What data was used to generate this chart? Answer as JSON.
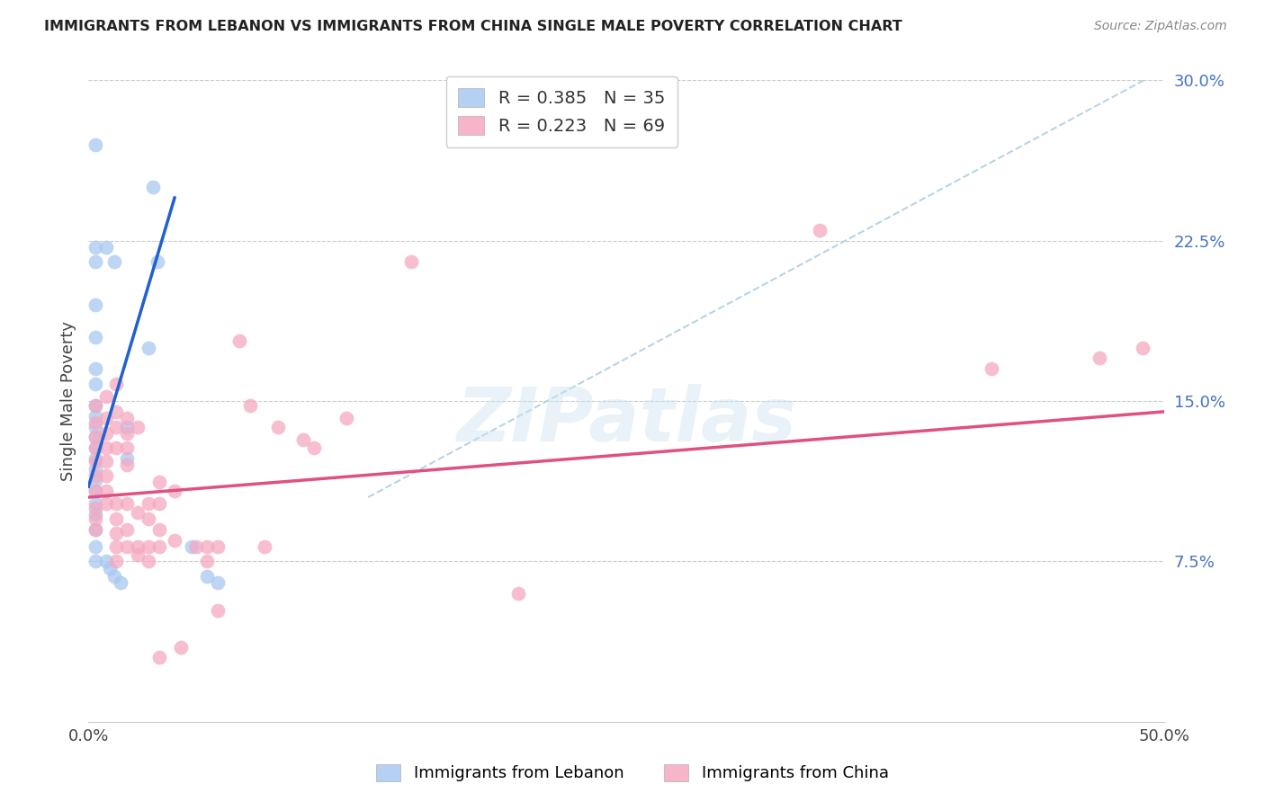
{
  "title": "IMMIGRANTS FROM LEBANON VS IMMIGRANTS FROM CHINA SINGLE MALE POVERTY CORRELATION CHART",
  "source": "Source: ZipAtlas.com",
  "ylabel": "Single Male Poverty",
  "lebanon_color": "#a8c8f0",
  "china_color": "#f5a8c0",
  "lebanon_line_color": "#2060d0",
  "china_line_color": "#e05080",
  "diagonal_color": "#b0d0e0",
  "background_color": "#ffffff",
  "xlim": [
    0.0,
    0.5
  ],
  "ylim": [
    0.0,
    0.3
  ],
  "lebanon_line": [
    0.0,
    0.11,
    0.04,
    0.245
  ],
  "china_line": [
    0.0,
    0.105,
    0.5,
    0.145
  ],
  "diagonal_line": [
    0.13,
    0.105,
    0.5,
    0.305
  ],
  "lebanon_points": [
    [
      0.003,
      0.27
    ],
    [
      0.003,
      0.222
    ],
    [
      0.003,
      0.215
    ],
    [
      0.003,
      0.195
    ],
    [
      0.003,
      0.18
    ],
    [
      0.003,
      0.165
    ],
    [
      0.003,
      0.158
    ],
    [
      0.003,
      0.148
    ],
    [
      0.003,
      0.143
    ],
    [
      0.003,
      0.138
    ],
    [
      0.003,
      0.133
    ],
    [
      0.003,
      0.128
    ],
    [
      0.003,
      0.123
    ],
    [
      0.003,
      0.118
    ],
    [
      0.003,
      0.113
    ],
    [
      0.003,
      0.108
    ],
    [
      0.003,
      0.102
    ],
    [
      0.003,
      0.097
    ],
    [
      0.003,
      0.09
    ],
    [
      0.003,
      0.082
    ],
    [
      0.003,
      0.075
    ],
    [
      0.008,
      0.222
    ],
    [
      0.012,
      0.215
    ],
    [
      0.018,
      0.138
    ],
    [
      0.018,
      0.123
    ],
    [
      0.028,
      0.175
    ],
    [
      0.03,
      0.25
    ],
    [
      0.032,
      0.215
    ],
    [
      0.048,
      0.082
    ],
    [
      0.055,
      0.068
    ],
    [
      0.06,
      0.065
    ],
    [
      0.008,
      0.075
    ],
    [
      0.01,
      0.072
    ],
    [
      0.012,
      0.068
    ],
    [
      0.015,
      0.065
    ]
  ],
  "china_points": [
    [
      0.003,
      0.148
    ],
    [
      0.003,
      0.14
    ],
    [
      0.003,
      0.133
    ],
    [
      0.003,
      0.128
    ],
    [
      0.003,
      0.122
    ],
    [
      0.003,
      0.115
    ],
    [
      0.003,
      0.108
    ],
    [
      0.003,
      0.1
    ],
    [
      0.003,
      0.095
    ],
    [
      0.003,
      0.09
    ],
    [
      0.008,
      0.152
    ],
    [
      0.008,
      0.142
    ],
    [
      0.008,
      0.135
    ],
    [
      0.008,
      0.128
    ],
    [
      0.008,
      0.122
    ],
    [
      0.008,
      0.115
    ],
    [
      0.008,
      0.108
    ],
    [
      0.008,
      0.102
    ],
    [
      0.013,
      0.158
    ],
    [
      0.013,
      0.145
    ],
    [
      0.013,
      0.138
    ],
    [
      0.013,
      0.128
    ],
    [
      0.013,
      0.102
    ],
    [
      0.013,
      0.095
    ],
    [
      0.013,
      0.088
    ],
    [
      0.013,
      0.082
    ],
    [
      0.013,
      0.075
    ],
    [
      0.018,
      0.142
    ],
    [
      0.018,
      0.135
    ],
    [
      0.018,
      0.128
    ],
    [
      0.018,
      0.12
    ],
    [
      0.018,
      0.102
    ],
    [
      0.018,
      0.09
    ],
    [
      0.018,
      0.082
    ],
    [
      0.023,
      0.138
    ],
    [
      0.023,
      0.098
    ],
    [
      0.023,
      0.082
    ],
    [
      0.023,
      0.078
    ],
    [
      0.028,
      0.102
    ],
    [
      0.028,
      0.095
    ],
    [
      0.028,
      0.082
    ],
    [
      0.028,
      0.075
    ],
    [
      0.033,
      0.112
    ],
    [
      0.033,
      0.102
    ],
    [
      0.033,
      0.09
    ],
    [
      0.033,
      0.082
    ],
    [
      0.033,
      0.03
    ],
    [
      0.04,
      0.108
    ],
    [
      0.04,
      0.085
    ],
    [
      0.043,
      0.035
    ],
    [
      0.05,
      0.082
    ],
    [
      0.055,
      0.082
    ],
    [
      0.055,
      0.075
    ],
    [
      0.06,
      0.082
    ],
    [
      0.06,
      0.052
    ],
    [
      0.07,
      0.178
    ],
    [
      0.075,
      0.148
    ],
    [
      0.082,
      0.082
    ],
    [
      0.088,
      0.138
    ],
    [
      0.1,
      0.132
    ],
    [
      0.105,
      0.128
    ],
    [
      0.12,
      0.142
    ],
    [
      0.15,
      0.215
    ],
    [
      0.2,
      0.06
    ],
    [
      0.34,
      0.23
    ],
    [
      0.42,
      0.165
    ],
    [
      0.47,
      0.17
    ],
    [
      0.49,
      0.175
    ]
  ]
}
